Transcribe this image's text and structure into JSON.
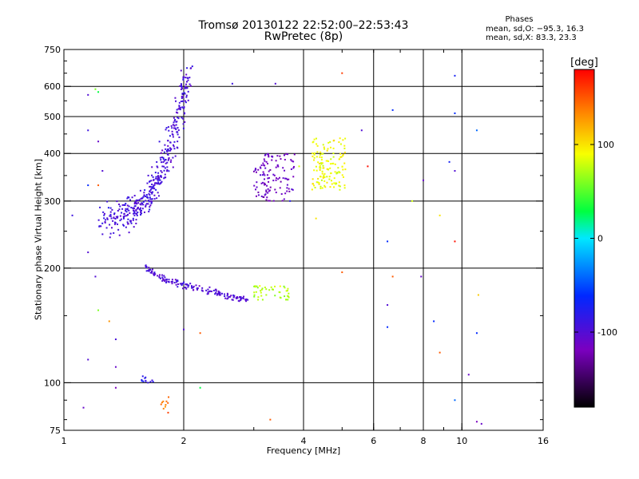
{
  "chart_data": {
    "type": "scatter",
    "title": "Tromsø 20130122 22:52:00–22:53:43",
    "subtitle": "RwPretec (8p)",
    "xlabel": "Frequency [MHz]",
    "ylabel": "Stationary phase Virtual Height [km]",
    "x_scale": "log",
    "y_scale": "log",
    "xlim": [
      1,
      16
    ],
    "ylim": [
      75,
      750
    ],
    "x_ticks": [
      1,
      2,
      4,
      6,
      8,
      10,
      16
    ],
    "y_ticks": [
      75,
      100,
      200,
      300,
      400,
      500,
      600,
      750
    ],
    "grid": true,
    "colorbar": {
      "label": "[deg]",
      "range": [
        -180,
        180
      ],
      "ticks": [
        100,
        0,
        -100
      ]
    },
    "stats": {
      "header": "Phases",
      "o_mode": "mean, sd,O: −95.3, 16.3",
      "x_mode": "mean, sd,X:  83.3, 23.3"
    },
    "clusters": [
      {
        "x": [
          1.25,
          2.05
        ],
        "y": [
          270,
          650
        ],
        "shape": "curve",
        "n": 420,
        "phase_mean": -95
      },
      {
        "x": [
          1.6,
          2.9
        ],
        "y": [
          165,
          205
        ],
        "shape": "band",
        "n": 160,
        "phase_mean": -98
      },
      {
        "x": [
          3.0,
          3.8
        ],
        "y": [
          300,
          400
        ],
        "shape": "blob",
        "n": 120,
        "phase_mean": -115
      },
      {
        "x": [
          3.0,
          3.7
        ],
        "y": [
          165,
          180
        ],
        "shape": "blob",
        "n": 45,
        "phase_mean": 75
      },
      {
        "x": [
          4.2,
          5.1
        ],
        "y": [
          320,
          440
        ],
        "shape": "blob",
        "n": 140,
        "phase_mean": 90
      },
      {
        "x": [
          1.55,
          1.7
        ],
        "y": [
          100,
          104
        ],
        "shape": "blob",
        "n": 12,
        "phase_mean": -80
      },
      {
        "x": [
          1.75,
          1.85
        ],
        "y": [
          83,
          92
        ],
        "shape": "blob",
        "n": 10,
        "phase_mean": 140
      }
    ],
    "scatter_points": [
      {
        "x": 1.15,
        "y": 570,
        "phase": -100
      },
      {
        "x": 1.2,
        "y": 590,
        "phase": 60
      },
      {
        "x": 1.22,
        "y": 580,
        "phase": 30
      },
      {
        "x": 1.15,
        "y": 460,
        "phase": -90
      },
      {
        "x": 1.22,
        "y": 430,
        "phase": -110
      },
      {
        "x": 1.22,
        "y": 330,
        "phase": 150
      },
      {
        "x": 1.15,
        "y": 330,
        "phase": -60
      },
      {
        "x": 1.25,
        "y": 360,
        "phase": -100
      },
      {
        "x": 1.05,
        "y": 275,
        "phase": -90
      },
      {
        "x": 1.15,
        "y": 220,
        "phase": -100
      },
      {
        "x": 1.2,
        "y": 190,
        "phase": -100
      },
      {
        "x": 1.22,
        "y": 155,
        "phase": 60
      },
      {
        "x": 1.3,
        "y": 145,
        "phase": 130
      },
      {
        "x": 1.35,
        "y": 130,
        "phase": -95
      },
      {
        "x": 1.35,
        "y": 110,
        "phase": -110
      },
      {
        "x": 1.15,
        "y": 115,
        "phase": -100
      },
      {
        "x": 1.35,
        "y": 97,
        "phase": -120
      },
      {
        "x": 1.12,
        "y": 86,
        "phase": -110
      },
      {
        "x": 2.0,
        "y": 138,
        "phase": -100
      },
      {
        "x": 2.2,
        "y": 135,
        "phase": 150
      },
      {
        "x": 2.2,
        "y": 97,
        "phase": 30
      },
      {
        "x": 2.65,
        "y": 610,
        "phase": -90
      },
      {
        "x": 3.4,
        "y": 610,
        "phase": -100
      },
      {
        "x": 3.3,
        "y": 80,
        "phase": 150
      },
      {
        "x": 3.7,
        "y": 300,
        "phase": -80
      },
      {
        "x": 3.9,
        "y": 370,
        "phase": 80
      },
      {
        "x": 4.3,
        "y": 270,
        "phase": 100
      },
      {
        "x": 5.0,
        "y": 650,
        "phase": 160
      },
      {
        "x": 5.0,
        "y": 195,
        "phase": 150
      },
      {
        "x": 5.6,
        "y": 460,
        "phase": -100
      },
      {
        "x": 5.8,
        "y": 370,
        "phase": 175
      },
      {
        "x": 6.5,
        "y": 235,
        "phase": -60
      },
      {
        "x": 6.5,
        "y": 160,
        "phase": -100
      },
      {
        "x": 6.5,
        "y": 140,
        "phase": -60
      },
      {
        "x": 6.7,
        "y": 520,
        "phase": -60
      },
      {
        "x": 6.7,
        "y": 190,
        "phase": 150
      },
      {
        "x": 7.5,
        "y": 300,
        "phase": 80
      },
      {
        "x": 7.9,
        "y": 190,
        "phase": -110
      },
      {
        "x": 8.0,
        "y": 340,
        "phase": -110
      },
      {
        "x": 8.5,
        "y": 145,
        "phase": -60
      },
      {
        "x": 8.8,
        "y": 275,
        "phase": 100
      },
      {
        "x": 8.8,
        "y": 120,
        "phase": 150
      },
      {
        "x": 9.3,
        "y": 380,
        "phase": -70
      },
      {
        "x": 9.6,
        "y": 360,
        "phase": -100
      },
      {
        "x": 9.6,
        "y": 235,
        "phase": 175
      },
      {
        "x": 9.6,
        "y": 510,
        "phase": -60
      },
      {
        "x": 9.6,
        "y": 640,
        "phase": -70
      },
      {
        "x": 9.6,
        "y": 90,
        "phase": -40
      },
      {
        "x": 10.4,
        "y": 105,
        "phase": -110
      },
      {
        "x": 10.9,
        "y": 460,
        "phase": -40
      },
      {
        "x": 10.9,
        "y": 135,
        "phase": -60
      },
      {
        "x": 11.0,
        "y": 170,
        "phase": 110
      },
      {
        "x": 10.9,
        "y": 79,
        "phase": -120
      },
      {
        "x": 11.2,
        "y": 78,
        "phase": -110
      }
    ]
  }
}
